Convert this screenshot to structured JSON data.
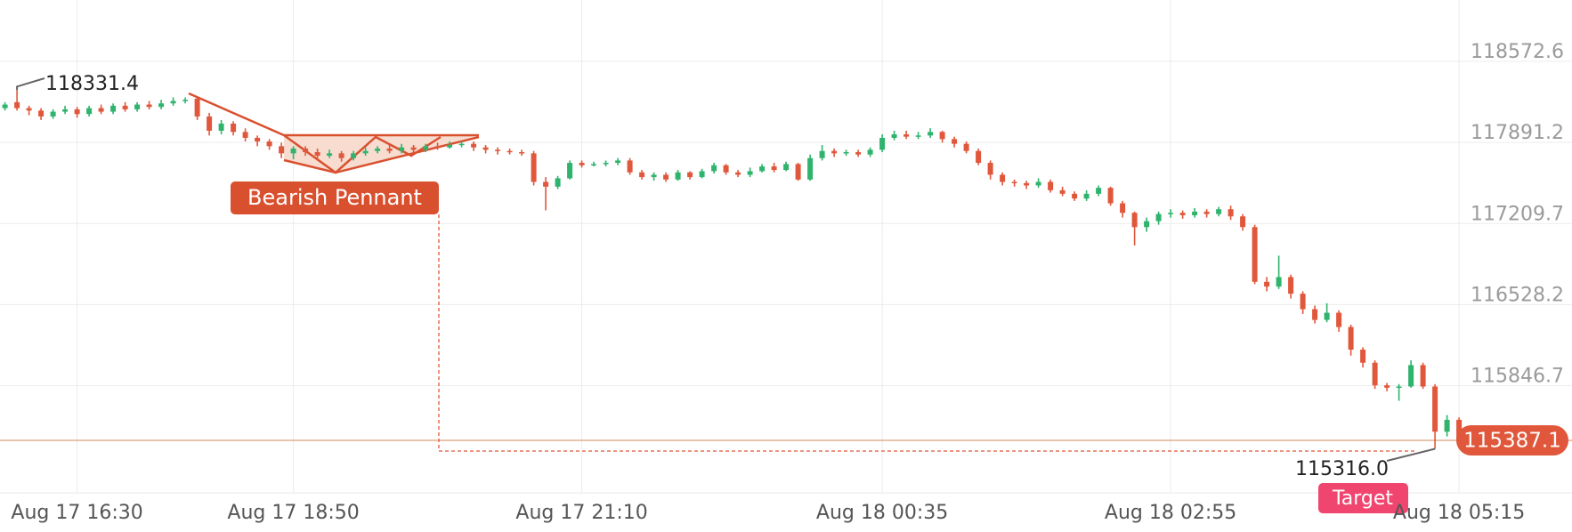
{
  "chart_data": {
    "type": "candlestick",
    "categories": [
      null,
      null,
      null,
      null,
      null,
      null,
      "Aug 17 16:30",
      null,
      null,
      null,
      null,
      null,
      null,
      null,
      null,
      null,
      null,
      null,
      null,
      null,
      null,
      null,
      null,
      null,
      "Aug 17 18:50",
      null,
      null,
      null,
      null,
      null,
      null,
      null,
      null,
      null,
      null,
      null,
      null,
      null,
      null,
      null,
      null,
      null,
      null,
      null,
      null,
      null,
      null,
      null,
      "Aug 17 21:10",
      null,
      null,
      null,
      null,
      null,
      null,
      null,
      null,
      null,
      null,
      null,
      null,
      null,
      null,
      null,
      null,
      null,
      null,
      null,
      null,
      null,
      null,
      null,
      null,
      "Aug 18 00:35",
      null,
      null,
      null,
      null,
      null,
      null,
      null,
      null,
      null,
      null,
      null,
      null,
      null,
      null,
      null,
      null,
      null,
      null,
      null,
      null,
      null,
      null,
      null,
      "Aug 18 02:55",
      null,
      null,
      null,
      null,
      null,
      null,
      null,
      null,
      null,
      null,
      null,
      null,
      null,
      null,
      null,
      null,
      null,
      null,
      null,
      null,
      null,
      null,
      null,
      "Aug 18 05:15"
    ],
    "open": [
      118180,
      118230,
      118180,
      118160,
      118110,
      118150,
      118170,
      118130,
      118180,
      118150,
      118200,
      118170,
      118210,
      118190,
      118220,
      118240,
      118260,
      118110,
      117990,
      118050,
      117980,
      117930,
      117900,
      117860,
      117800,
      117840,
      117810,
      117780,
      117800,
      117760,
      117800,
      117820,
      117840,
      117820,
      117850,
      117830,
      117860,
      117850,
      117870,
      117880,
      117850,
      117830,
      117820,
      117810,
      117800,
      117560,
      117520,
      117590,
      117720,
      117700,
      117710,
      117720,
      117740,
      117640,
      117600,
      117620,
      117580,
      117640,
      117600,
      117650,
      117700,
      117640,
      117620,
      117650,
      117690,
      117660,
      117710,
      117580,
      117760,
      117820,
      117800,
      117810,
      117790,
      117830,
      117930,
      117960,
      117940,
      117950,
      117980,
      117920,
      117880,
      117820,
      117720,
      117620,
      117560,
      117550,
      117530,
      117560,
      117490,
      117460,
      117420,
      117460,
      117510,
      117380,
      117300,
      117180,
      117230,
      117290,
      117300,
      117280,
      117310,
      117290,
      117330,
      117270,
      117180,
      116720,
      116680,
      116760,
      116620,
      116490,
      116400,
      116460,
      116340,
      116150,
      116040,
      115850,
      115830,
      115840,
      116020,
      115840,
      115460,
      115560
    ],
    "high": [
      118230,
      118331.4,
      118200,
      118180,
      118170,
      118200,
      118190,
      118200,
      118210,
      118220,
      118230,
      118230,
      118240,
      118250,
      118270,
      118270,
      118270,
      118140,
      118080,
      118070,
      118010,
      117950,
      117920,
      117890,
      117860,
      117860,
      117840,
      117830,
      117820,
      117820,
      117850,
      117860,
      117870,
      117880,
      117870,
      117880,
      117890,
      117900,
      117900,
      117900,
      117870,
      117850,
      117840,
      117830,
      117820,
      117600,
      117610,
      117740,
      117740,
      117730,
      117740,
      117760,
      117760,
      117660,
      117640,
      117640,
      117660,
      117650,
      117670,
      117720,
      117710,
      117660,
      117680,
      117710,
      117720,
      117730,
      117720,
      117790,
      117870,
      117840,
      117830,
      117830,
      117850,
      117960,
      117990,
      117990,
      117980,
      118011,
      117990,
      117940,
      117900,
      117840,
      117740,
      117640,
      117580,
      117570,
      117590,
      117580,
      117520,
      117480,
      117490,
      117530,
      117520,
      117400,
      117310,
      117260,
      117310,
      117330,
      117320,
      117340,
      117330,
      117350,
      117360,
      117290,
      117200,
      116760,
      116940,
      116780,
      116640,
      116520,
      116540,
      116480,
      116360,
      116170,
      116060,
      115870,
      115860,
      116060,
      116040,
      115860,
      115600,
      115580
    ],
    "low": [
      118160,
      118160,
      118120,
      118080,
      118090,
      118130,
      118100,
      118110,
      118130,
      118130,
      118150,
      118150,
      118170,
      118170,
      118200,
      118220,
      118080,
      117950,
      117960,
      117950,
      117900,
      117860,
      117830,
      117760,
      117750,
      117780,
      117750,
      117760,
      117730,
      117740,
      117780,
      117800,
      117800,
      117800,
      117810,
      117810,
      117830,
      117840,
      117850,
      117820,
      117800,
      117790,
      117790,
      117780,
      117530,
      117321,
      117500,
      117580,
      117680,
      117690,
      117690,
      117700,
      117620,
      117580,
      117570,
      117560,
      117570,
      117580,
      117590,
      117630,
      117620,
      117600,
      117600,
      117640,
      117640,
      117650,
      117570,
      117570,
      117740,
      117770,
      117780,
      117770,
      117770,
      117810,
      117910,
      117920,
      117920,
      117930,
      117890,
      117850,
      117800,
      117700,
      117580,
      117530,
      117520,
      117500,
      117510,
      117470,
      117440,
      117400,
      117400,
      117440,
      117360,
      117260,
      117026,
      117140,
      117200,
      117260,
      117250,
      117260,
      117260,
      117270,
      117240,
      117150,
      116700,
      116640,
      116660,
      116580,
      116450,
      116370,
      116380,
      116300,
      116100,
      116000,
      115820,
      115800,
      115720,
      115830,
      115820,
      115316,
      115420,
      115370
    ],
    "close": [
      118210,
      118180,
      118160,
      118110,
      118150,
      118170,
      118130,
      118180,
      118150,
      118200,
      118170,
      118210,
      118190,
      118220,
      118240,
      118250,
      118110,
      117990,
      118050,
      117980,
      117930,
      117900,
      117860,
      117800,
      117840,
      117810,
      117780,
      117800,
      117760,
      117800,
      117820,
      117840,
      117820,
      117850,
      117830,
      117860,
      117850,
      117870,
      117880,
      117850,
      117830,
      117820,
      117810,
      117800,
      117560,
      117520,
      117590,
      117720,
      117700,
      117710,
      117720,
      117740,
      117640,
      117600,
      117620,
      117580,
      117640,
      117600,
      117650,
      117700,
      117640,
      117620,
      117650,
      117690,
      117660,
      117710,
      117580,
      117760,
      117820,
      117800,
      117810,
      117790,
      117830,
      117930,
      117960,
      117940,
      117950,
      117980,
      117920,
      117880,
      117820,
      117720,
      117620,
      117560,
      117550,
      117530,
      117560,
      117490,
      117460,
      117420,
      117460,
      117510,
      117380,
      117300,
      117180,
      117230,
      117290,
      117300,
      117280,
      117310,
      117290,
      117330,
      117270,
      117180,
      116720,
      116680,
      116760,
      116620,
      116490,
      116400,
      116460,
      116340,
      116150,
      116040,
      115850,
      115830,
      115840,
      116020,
      115840,
      115460,
      115560,
      115387.1
    ],
    "up_color": "#2fb36d",
    "down_color": "#e0573b",
    "price_line_color": "#d9a07a",
    "low_label": "115316.0",
    "pattern_label": "Bearish Pennant",
    "target_label": "Target",
    "ylim": [
      114946,
      119089
    ],
    "yticks": [
      118572.6,
      117891.2,
      117209.7,
      116528.2,
      115846.7
    ],
    "grid": true
  }
}
